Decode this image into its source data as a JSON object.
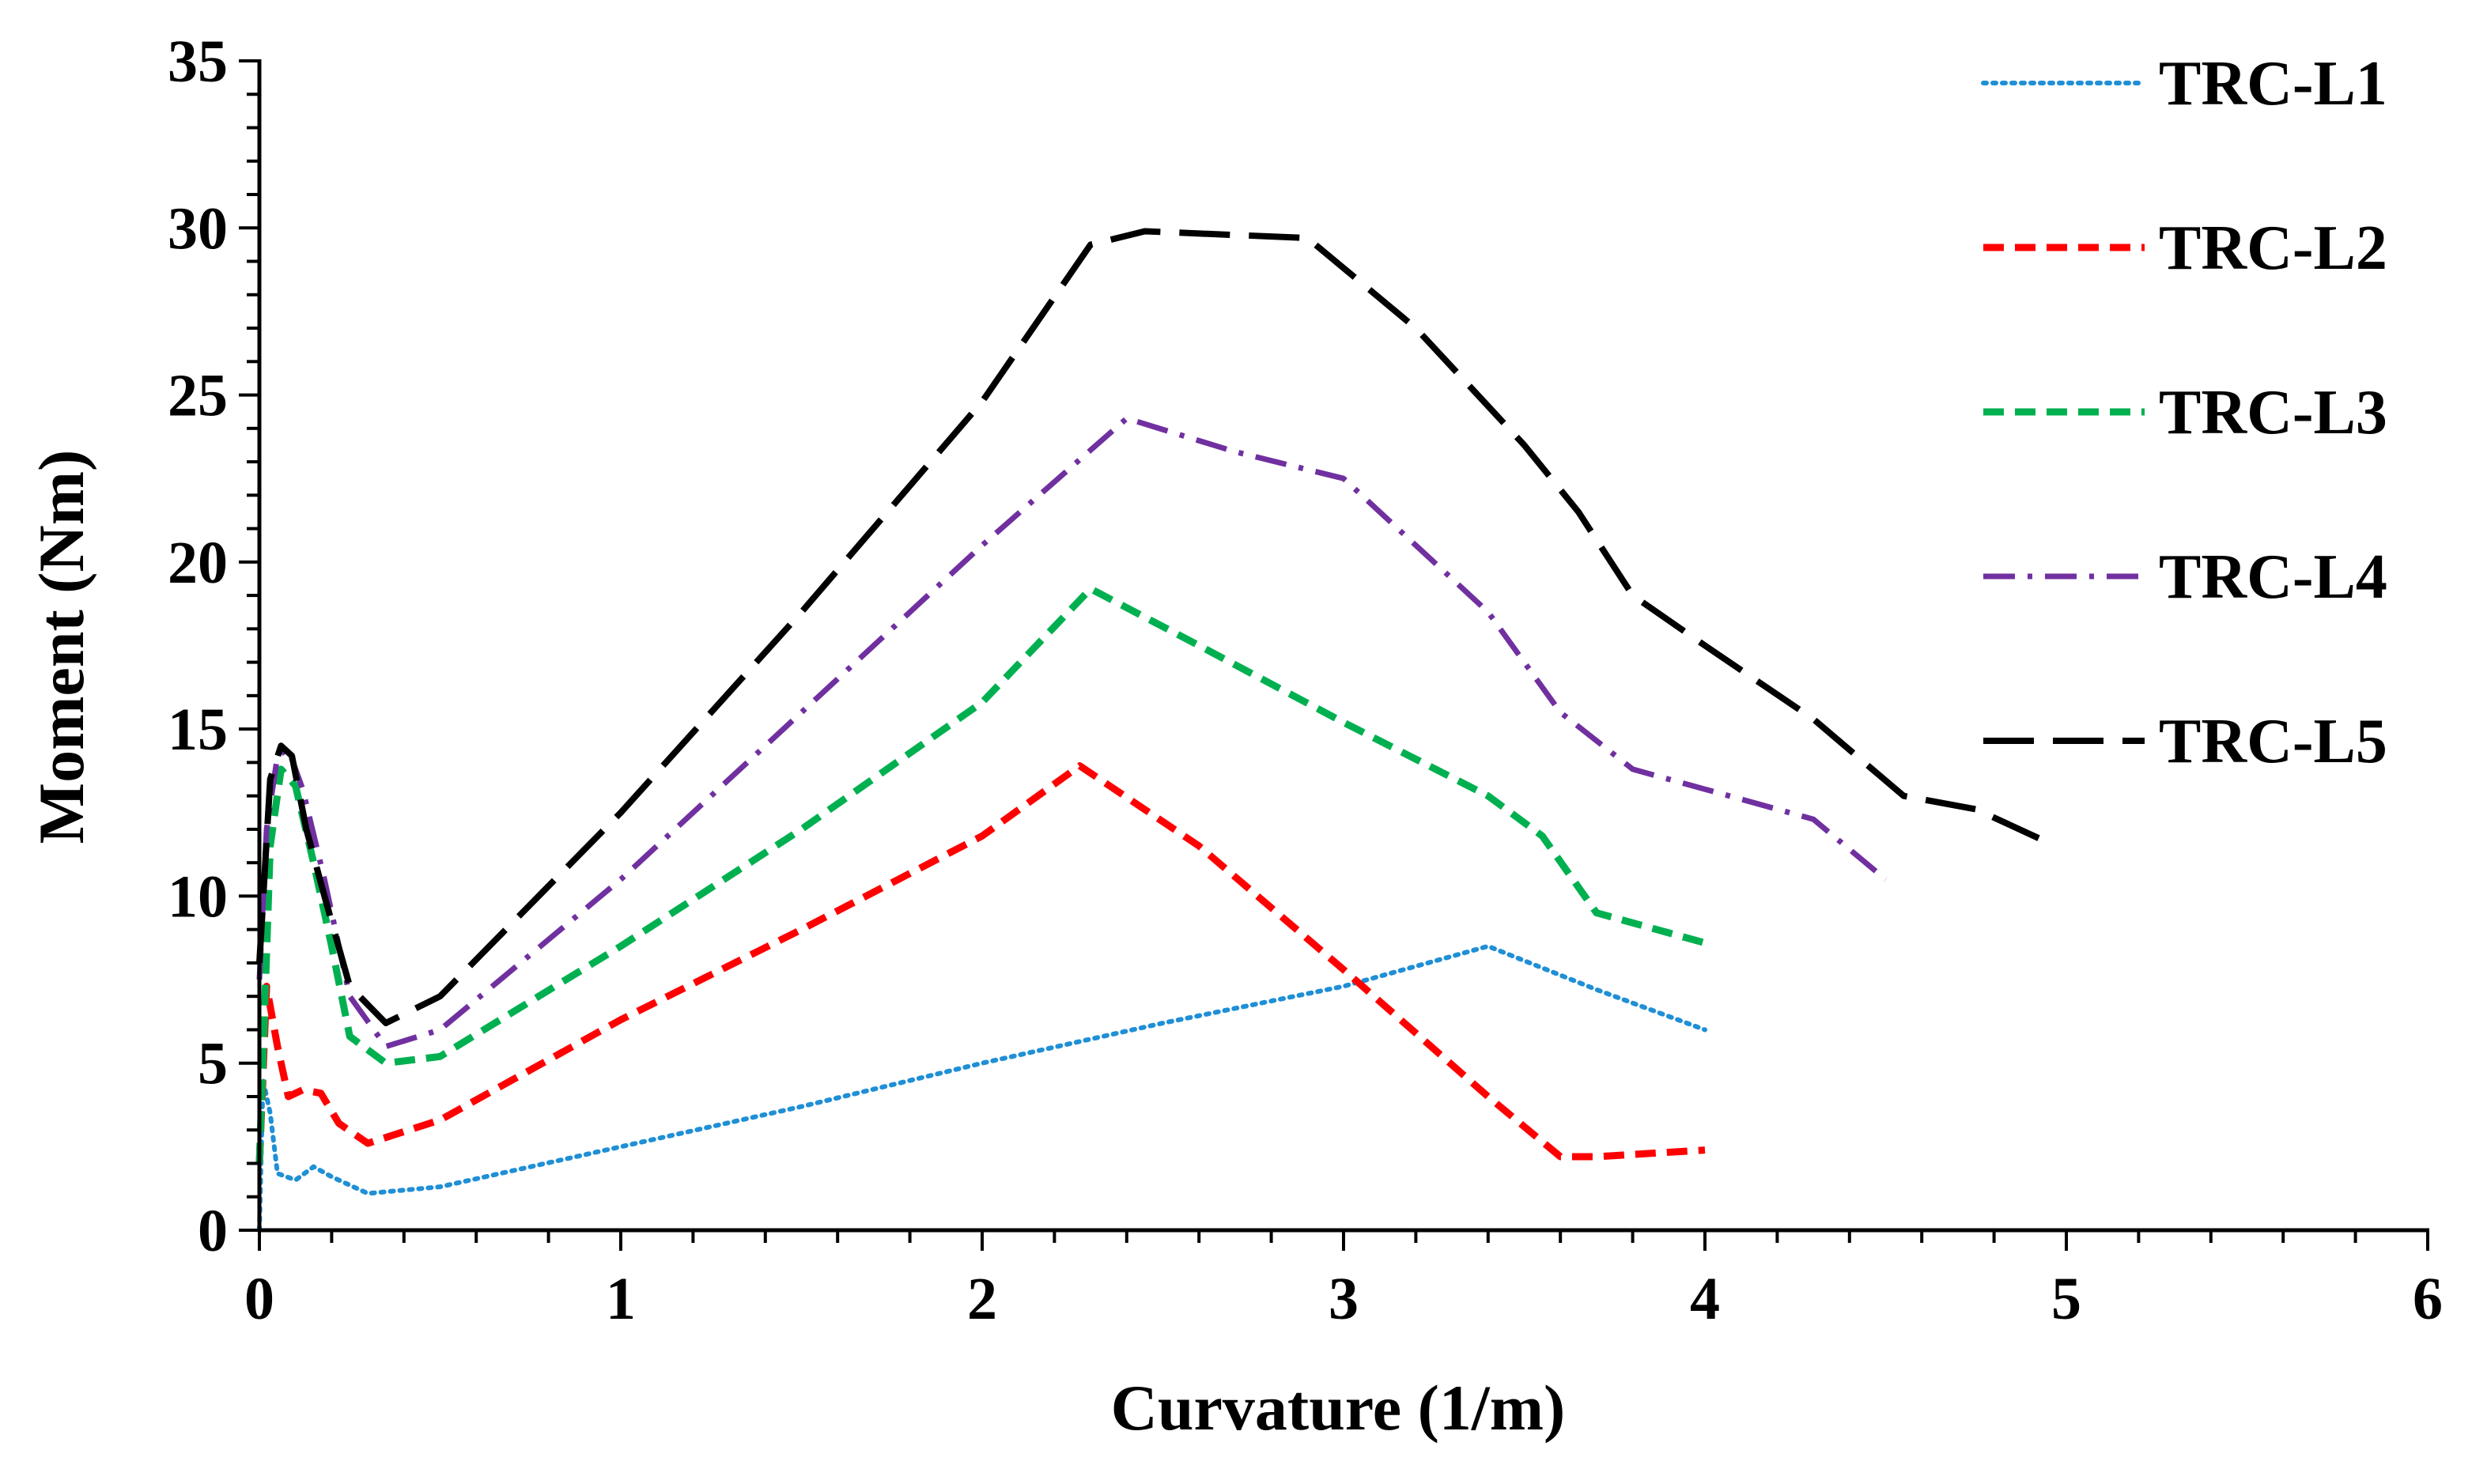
{
  "chart_data": {
    "type": "line",
    "title": "",
    "xlabel": "Curvature (1/m)",
    "ylabel": "Moment (Nm)",
    "xlim": [
      0,
      6
    ],
    "ylim": [
      0,
      35
    ],
    "x_ticks": [
      0,
      1,
      2,
      3,
      4,
      5,
      6
    ],
    "y_ticks": [
      0,
      5,
      10,
      15,
      20,
      25,
      30,
      35
    ],
    "x_tick_labels": [
      "0",
      "1",
      "2",
      "3",
      "4",
      "5",
      "6"
    ],
    "y_tick_labels": [
      "0",
      "5",
      "10",
      "15",
      "20",
      "25",
      "30",
      "35"
    ],
    "grid": false,
    "legend_position": "top-right",
    "series": [
      {
        "name": "TRC-L1",
        "color": "#1f8fd6",
        "style": "dotted",
        "points": [
          [
            0,
            0
          ],
          [
            0.01,
            4.5
          ],
          [
            0.03,
            3.5
          ],
          [
            0.05,
            1.7
          ],
          [
            0.1,
            1.5
          ],
          [
            0.15,
            1.9
          ],
          [
            0.2,
            1.6
          ],
          [
            0.3,
            1.1
          ],
          [
            0.5,
            1.3
          ],
          [
            1.0,
            2.5
          ],
          [
            1.5,
            3.7
          ],
          [
            2.0,
            5.0
          ],
          [
            2.5,
            6.2
          ],
          [
            3.0,
            7.3
          ],
          [
            3.4,
            8.5
          ],
          [
            3.7,
            7.2
          ],
          [
            4.0,
            6.0
          ]
        ]
      },
      {
        "name": "TRC-L2",
        "color": "#ff0000",
        "style": "dashed",
        "points": [
          [
            0,
            2.0
          ],
          [
            0.02,
            7.3
          ],
          [
            0.05,
            5.5
          ],
          [
            0.08,
            4.0
          ],
          [
            0.12,
            4.2
          ],
          [
            0.17,
            4.1
          ],
          [
            0.22,
            3.2
          ],
          [
            0.3,
            2.6
          ],
          [
            0.5,
            3.3
          ],
          [
            1.0,
            6.3
          ],
          [
            1.5,
            9.0
          ],
          [
            2.0,
            11.8
          ],
          [
            2.27,
            13.9
          ],
          [
            2.6,
            11.5
          ],
          [
            3.0,
            7.8
          ],
          [
            3.4,
            4.0
          ],
          [
            3.6,
            2.2
          ],
          [
            3.7,
            2.2
          ],
          [
            4.0,
            2.4
          ]
        ]
      },
      {
        "name": "TRC-L3",
        "color": "#00b050",
        "style": "dashed",
        "points": [
          [
            0,
            2.0
          ],
          [
            0.03,
            11.5
          ],
          [
            0.06,
            13.8
          ],
          [
            0.1,
            13.3
          ],
          [
            0.15,
            11.0
          ],
          [
            0.2,
            8.5
          ],
          [
            0.25,
            5.8
          ],
          [
            0.35,
            5.0
          ],
          [
            0.5,
            5.2
          ],
          [
            1.0,
            8.5
          ],
          [
            1.5,
            12.0
          ],
          [
            2.0,
            15.8
          ],
          [
            2.3,
            19.2
          ],
          [
            2.6,
            17.5
          ],
          [
            3.0,
            15.2
          ],
          [
            3.4,
            13.0
          ],
          [
            3.55,
            11.8
          ],
          [
            3.7,
            9.5
          ],
          [
            4.0,
            8.6
          ]
        ]
      },
      {
        "name": "TRC-L4",
        "color": "#7030a0",
        "style": "dashdot",
        "points": [
          [
            0,
            7.5
          ],
          [
            0.02,
            12.0
          ],
          [
            0.05,
            14.2
          ],
          [
            0.08,
            14.4
          ],
          [
            0.12,
            13.2
          ],
          [
            0.18,
            10.5
          ],
          [
            0.25,
            7.0
          ],
          [
            0.35,
            5.5
          ],
          [
            0.5,
            6.0
          ],
          [
            1.0,
            10.5
          ],
          [
            1.5,
            15.5
          ],
          [
            2.0,
            20.5
          ],
          [
            2.4,
            24.3
          ],
          [
            2.7,
            23.3
          ],
          [
            3.0,
            22.5
          ],
          [
            3.4,
            18.5
          ],
          [
            3.6,
            15.5
          ],
          [
            3.8,
            13.8
          ],
          [
            4.0,
            13.2
          ],
          [
            4.3,
            12.3
          ],
          [
            4.5,
            10.5
          ]
        ]
      },
      {
        "name": "TRC-L5",
        "color": "#000000",
        "style": "longdash",
        "points": [
          [
            0,
            8.0
          ],
          [
            0.03,
            13.5
          ],
          [
            0.06,
            14.5
          ],
          [
            0.09,
            14.2
          ],
          [
            0.13,
            12.0
          ],
          [
            0.18,
            10.0
          ],
          [
            0.25,
            7.3
          ],
          [
            0.35,
            6.2
          ],
          [
            0.5,
            7.0
          ],
          [
            1.0,
            12.5
          ],
          [
            1.5,
            18.5
          ],
          [
            2.0,
            24.8
          ],
          [
            2.3,
            29.5
          ],
          [
            2.45,
            29.9
          ],
          [
            2.9,
            29.7
          ],
          [
            3.2,
            27.0
          ],
          [
            3.5,
            23.5
          ],
          [
            3.65,
            21.5
          ],
          [
            3.8,
            19.0
          ],
          [
            4.0,
            17.5
          ],
          [
            4.3,
            15.3
          ],
          [
            4.55,
            13.0
          ],
          [
            4.75,
            12.6
          ],
          [
            4.95,
            11.6
          ]
        ]
      }
    ]
  }
}
